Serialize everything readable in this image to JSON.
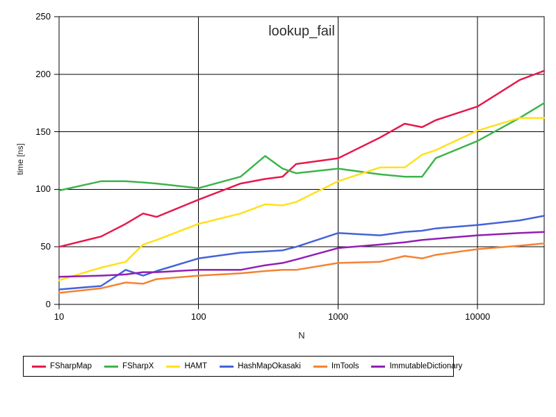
{
  "chart_data": {
    "type": "line",
    "title": "lookup_fail",
    "xlabel": "N",
    "ylabel": "time [ns]",
    "x_scale": "log",
    "y_scale": "linear",
    "xlim": [
      10,
      30000
    ],
    "ylim": [
      0,
      250
    ],
    "grid": true,
    "x_ticks": [
      10,
      100,
      1000,
      10000
    ],
    "y_ticks": [
      0,
      50,
      100,
      150,
      200,
      250
    ],
    "x_gridlines": [
      100,
      1000,
      10000
    ],
    "y_gridlines": [
      50,
      100,
      150,
      200
    ],
    "legend_position": "bottom",
    "x": [
      10,
      20,
      30,
      40,
      50,
      100,
      200,
      300,
      400,
      500,
      1000,
      2000,
      3000,
      4000,
      5000,
      10000,
      20000,
      30000
    ],
    "series": [
      {
        "name": "FSharpMap",
        "color": "#e6194b",
        "values": [
          50,
          59,
          70,
          79,
          76,
          91,
          105,
          109,
          111,
          122,
          127,
          145,
          157,
          154,
          160,
          172,
          195,
          203
        ]
      },
      {
        "name": "FSharpX",
        "color": "#3cb44b",
        "values": [
          99,
          107,
          107,
          106,
          105,
          101,
          111,
          129,
          118,
          114,
          118,
          113,
          111,
          111,
          127,
          142,
          162,
          175
        ]
      },
      {
        "name": "HAMT",
        "color": "#ffe119",
        "values": [
          21,
          32,
          37,
          52,
          56,
          70,
          79,
          87,
          86,
          89,
          107,
          119,
          119,
          130,
          134,
          151,
          162,
          162
        ]
      },
      {
        "name": "HashMapOkasaki",
        "color": "#4363d8",
        "values": [
          13,
          16,
          30,
          25,
          29,
          40,
          45,
          46,
          47,
          50,
          62,
          60,
          63,
          64,
          66,
          69,
          73,
          77
        ]
      },
      {
        "name": "ImTools",
        "color": "#f58231",
        "values": [
          10,
          14,
          19,
          18,
          22,
          25,
          27,
          29,
          30,
          30,
          36,
          37,
          42,
          40,
          43,
          48,
          51,
          53
        ]
      },
      {
        "name": "ImmutableDictionary",
        "color": "#911eb4",
        "values": [
          24,
          25,
          26,
          28,
          28,
          30,
          30,
          34,
          36,
          39,
          49,
          52,
          54,
          56,
          57,
          60,
          62,
          63
        ]
      }
    ],
    "axis_color": "#000000",
    "background_color": "#ffffff"
  }
}
